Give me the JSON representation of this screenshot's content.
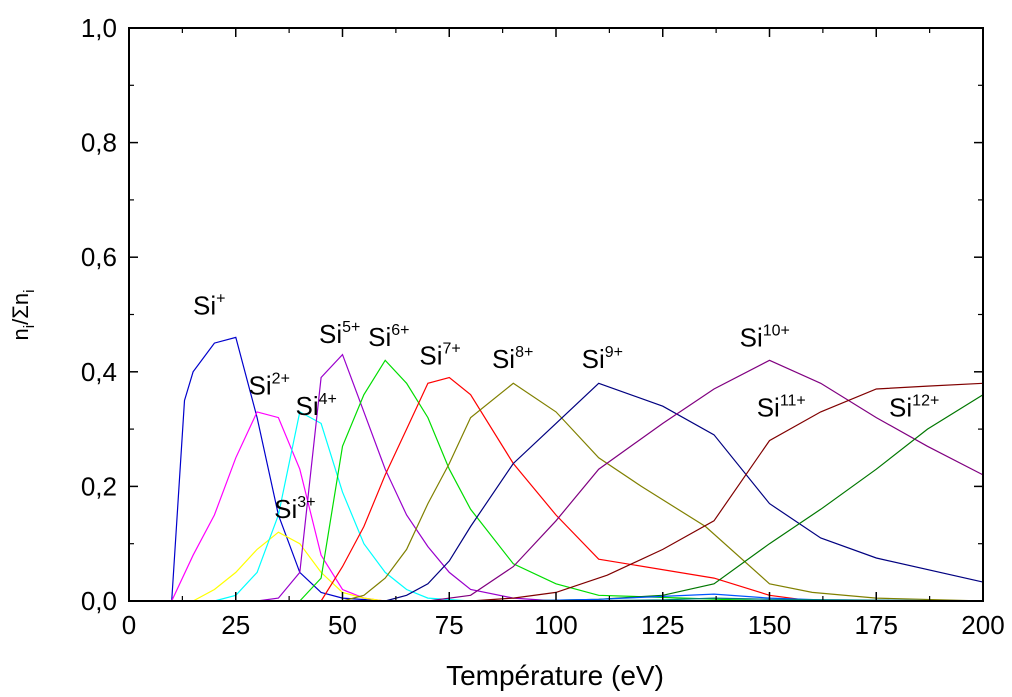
{
  "chart_data": {
    "type": "line",
    "title": "",
    "xlabel": "Température (eV)",
    "ylabel_parts": {
      "n": "n",
      "sub1": "i",
      "slash": "/Σn",
      "sub2": "i"
    },
    "xlim": [
      0,
      200
    ],
    "ylim": [
      0,
      1.0
    ],
    "x_ticks": [
      0,
      25,
      50,
      75,
      100,
      125,
      150,
      175,
      200
    ],
    "y_ticks": [
      0.0,
      0.2,
      0.4,
      0.6,
      0.8,
      1.0
    ],
    "x_tick_labels": [
      "0",
      "25",
      "50",
      "75",
      "100",
      "125",
      "150",
      "175",
      "200"
    ],
    "y_tick_labels": [
      "0,0",
      "0,2",
      "0,4",
      "0,6",
      "0,8",
      "1,0"
    ],
    "grid": false,
    "legend": "none",
    "series": [
      {
        "name": "Si+",
        "color": "#0000cc",
        "points": [
          [
            10,
            0
          ],
          [
            13,
            0.35
          ],
          [
            15,
            0.4
          ],
          [
            20,
            0.45
          ],
          [
            25,
            0.46
          ],
          [
            30,
            0.32
          ],
          [
            35,
            0.15
          ],
          [
            40,
            0.05
          ],
          [
            45,
            0.015
          ],
          [
            50,
            0.005
          ],
          [
            60,
            0
          ]
        ]
      },
      {
        "name": "Si2+",
        "color": "#ff00ff",
        "points": [
          [
            10,
            0
          ],
          [
            15,
            0.08
          ],
          [
            20,
            0.15
          ],
          [
            25,
            0.25
          ],
          [
            30,
            0.33
          ],
          [
            35,
            0.32
          ],
          [
            40,
            0.23
          ],
          [
            45,
            0.08
          ],
          [
            50,
            0.02
          ],
          [
            55,
            0.005
          ],
          [
            60,
            0
          ]
        ]
      },
      {
        "name": "Si3+",
        "color": "#ffff00",
        "points": [
          [
            15,
            0
          ],
          [
            20,
            0.02
          ],
          [
            25,
            0.05
          ],
          [
            30,
            0.09
          ],
          [
            35,
            0.12
          ],
          [
            40,
            0.1
          ],
          [
            45,
            0.05
          ],
          [
            50,
            0.015
          ],
          [
            55,
            0.005
          ],
          [
            60,
            0
          ]
        ]
      },
      {
        "name": "Si4+",
        "color": "#00ffff",
        "points": [
          [
            20,
            0
          ],
          [
            25,
            0.01
          ],
          [
            30,
            0.05
          ],
          [
            35,
            0.15
          ],
          [
            40,
            0.33
          ],
          [
            45,
            0.31
          ],
          [
            50,
            0.19
          ],
          [
            55,
            0.1
          ],
          [
            60,
            0.05
          ],
          [
            65,
            0.02
          ],
          [
            70,
            0.005
          ],
          [
            80,
            0
          ]
        ]
      },
      {
        "name": "Si5+",
        "color": "#9900cc",
        "points": [
          [
            30,
            0
          ],
          [
            35,
            0.005
          ],
          [
            40,
            0.05
          ],
          [
            45,
            0.39
          ],
          [
            50,
            0.43
          ],
          [
            55,
            0.33
          ],
          [
            60,
            0.23
          ],
          [
            65,
            0.15
          ],
          [
            70,
            0.095
          ],
          [
            75,
            0.05
          ],
          [
            80,
            0.02
          ],
          [
            90,
            0.005
          ],
          [
            100,
            0
          ]
        ]
      },
      {
        "name": "Si6+",
        "color": "#00dd00",
        "points": [
          [
            40,
            0
          ],
          [
            45,
            0.04
          ],
          [
            50,
            0.27
          ],
          [
            55,
            0.36
          ],
          [
            60,
            0.42
          ],
          [
            65,
            0.38
          ],
          [
            70,
            0.32
          ],
          [
            75,
            0.23
          ],
          [
            80,
            0.16
          ],
          [
            90,
            0.065
          ],
          [
            100,
            0.03
          ],
          [
            110,
            0.01
          ],
          [
            130,
            0.005
          ],
          [
            150,
            0
          ]
        ]
      },
      {
        "name": "Si7+",
        "color": "#ff0000",
        "points": [
          [
            45,
            0
          ],
          [
            50,
            0.06
          ],
          [
            55,
            0.13
          ],
          [
            60,
            0.22
          ],
          [
            65,
            0.3
          ],
          [
            70,
            0.38
          ],
          [
            75,
            0.39
          ],
          [
            80,
            0.36
          ],
          [
            90,
            0.24
          ],
          [
            100,
            0.15
          ],
          [
            110,
            0.073
          ],
          [
            137,
            0.04
          ],
          [
            150,
            0.01
          ],
          [
            160,
            0
          ]
        ]
      },
      {
        "name": "Si8+",
        "color": "#808000",
        "points": [
          [
            50,
            0
          ],
          [
            55,
            0.01
          ],
          [
            60,
            0.04
          ],
          [
            65,
            0.09
          ],
          [
            70,
            0.17
          ],
          [
            75,
            0.24
          ],
          [
            80,
            0.32
          ],
          [
            90,
            0.38
          ],
          [
            100,
            0.33
          ],
          [
            110,
            0.25
          ],
          [
            120,
            0.2
          ],
          [
            135,
            0.13
          ],
          [
            150,
            0.03
          ],
          [
            160,
            0.015
          ],
          [
            175,
            0.005
          ],
          [
            200,
            0
          ]
        ]
      },
      {
        "name": "Si9+",
        "color": "#000080",
        "points": [
          [
            60,
            0
          ],
          [
            65,
            0.01
          ],
          [
            70,
            0.03
          ],
          [
            75,
            0.07
          ],
          [
            80,
            0.13
          ],
          [
            90,
            0.24
          ],
          [
            100,
            0.31
          ],
          [
            110,
            0.38
          ],
          [
            125,
            0.34
          ],
          [
            137,
            0.29
          ],
          [
            150,
            0.17
          ],
          [
            162,
            0.11
          ],
          [
            175,
            0.075
          ],
          [
            200,
            0.033
          ]
        ]
      },
      {
        "name": "Si10+",
        "color": "#800080",
        "points": [
          [
            70,
            0
          ],
          [
            80,
            0.01
          ],
          [
            90,
            0.06
          ],
          [
            100,
            0.14
          ],
          [
            110,
            0.23
          ],
          [
            125,
            0.31
          ],
          [
            137,
            0.37
          ],
          [
            150,
            0.42
          ],
          [
            162,
            0.38
          ],
          [
            175,
            0.32
          ],
          [
            187,
            0.27
          ],
          [
            200,
            0.22
          ]
        ]
      },
      {
        "name": "Si11+",
        "color": "#800000",
        "points": [
          [
            80,
            0
          ],
          [
            90,
            0.005
          ],
          [
            100,
            0.015
          ],
          [
            112,
            0.045
          ],
          [
            125,
            0.09
          ],
          [
            137,
            0.14
          ],
          [
            150,
            0.28
          ],
          [
            162,
            0.33
          ],
          [
            175,
            0.37
          ],
          [
            187,
            0.375
          ],
          [
            200,
            0.38
          ]
        ]
      },
      {
        "name": "Si12+",
        "color": "#007700",
        "points": [
          [
            90,
            0
          ],
          [
            110,
            0.003
          ],
          [
            125,
            0.01
          ],
          [
            137,
            0.03
          ],
          [
            150,
            0.1
          ],
          [
            162,
            0.16
          ],
          [
            175,
            0.23
          ],
          [
            187,
            0.3
          ],
          [
            200,
            0.36
          ]
        ]
      },
      {
        "name": "",
        "color": "#0055ff",
        "points": [
          [
            90,
            0
          ],
          [
            110,
            0.003
          ],
          [
            125,
            0.008
          ],
          [
            137,
            0.012
          ],
          [
            150,
            0.005
          ],
          [
            162,
            0.002
          ],
          [
            200,
            0
          ]
        ]
      },
      {
        "name": "",
        "color": "#008080",
        "points": [
          [
            100,
            0
          ],
          [
            125,
            0.002
          ],
          [
            137,
            0.005
          ],
          [
            150,
            0.003
          ],
          [
            200,
            0
          ]
        ]
      }
    ],
    "annotations": [
      {
        "base": "Si",
        "sup": "+",
        "x": 15,
        "y": 0.5
      },
      {
        "base": "Si",
        "sup": "2+",
        "x": 28,
        "y": 0.36
      },
      {
        "base": "Si",
        "sup": "3+",
        "x": 34,
        "y": 0.145
      },
      {
        "base": "Si",
        "sup": "4+",
        "x": 39,
        "y": 0.325
      },
      {
        "base": "Si",
        "sup": "5+",
        "x": 44.5,
        "y": 0.45
      },
      {
        "base": "Si",
        "sup": "6+",
        "x": 56,
        "y": 0.445
      },
      {
        "base": "Si",
        "sup": "7+",
        "x": 68,
        "y": 0.413
      },
      {
        "base": "Si",
        "sup": "8+",
        "x": 85,
        "y": 0.407
      },
      {
        "base": "Si",
        "sup": "9+",
        "x": 106,
        "y": 0.407
      },
      {
        "base": "Si",
        "sup": "10+",
        "x": 143,
        "y": 0.444
      },
      {
        "base": "Si",
        "sup": "11+",
        "x": 147,
        "y": 0.322
      },
      {
        "base": "Si",
        "sup": "12+",
        "x": 178,
        "y": 0.322
      }
    ]
  }
}
